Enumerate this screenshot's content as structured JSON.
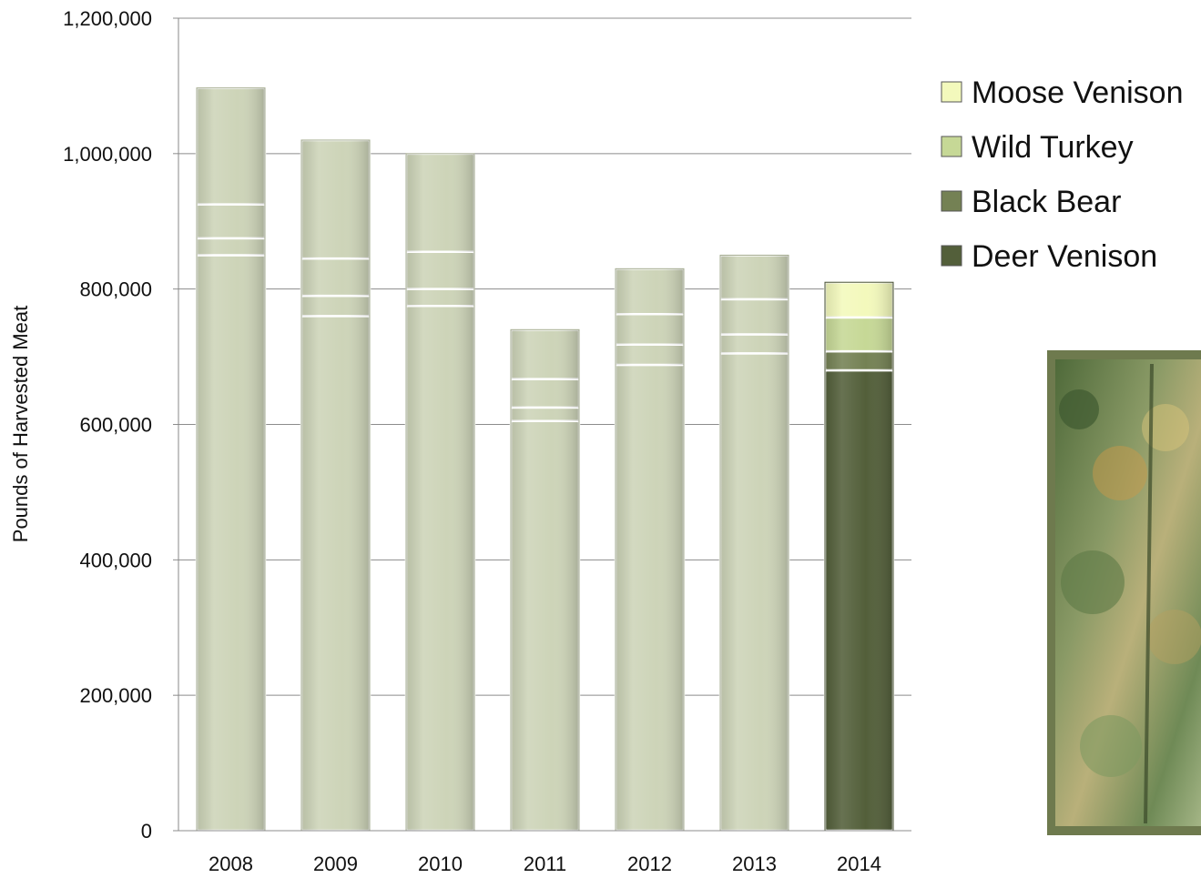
{
  "chart_data": {
    "type": "bar",
    "stacked": true,
    "categories": [
      "2008",
      "2009",
      "2010",
      "2011",
      "2012",
      "2013",
      "2014"
    ],
    "series": [
      {
        "name": "Deer Venison",
        "values": [
          850000,
          760000,
          775000,
          605000,
          688000,
          705000,
          680000
        ]
      },
      {
        "name": "Black Bear",
        "values": [
          25000,
          30000,
          25000,
          20000,
          30000,
          28000,
          28000
        ]
      },
      {
        "name": "Wild Turkey",
        "values": [
          50000,
          55000,
          55000,
          42000,
          45000,
          52000,
          50000
        ]
      },
      {
        "name": "Moose Venison",
        "values": [
          172000,
          175000,
          145000,
          73000,
          67000,
          65000,
          52000
        ]
      }
    ],
    "highlight_category": "2014",
    "ylabel": "Pounds of Harvested Meat",
    "xlabel": "",
    "ylim": [
      0,
      1200000
    ],
    "yticks": [
      "0",
      "200,000",
      "400,000",
      "600,000",
      "800,000",
      "1,000,000",
      "1,200,000"
    ],
    "grid": true,
    "legend_position": "right",
    "colors": {
      "Deer Venison": "#535f3a",
      "Black Bear": "#748154",
      "Wild Turkey": "#c6d896",
      "Moose Venison": "#f3f9bc",
      "muted": "#cdd4b8",
      "frame": "#6e7a4e"
    }
  },
  "photo": {
    "description_icon": "forest-photo"
  }
}
